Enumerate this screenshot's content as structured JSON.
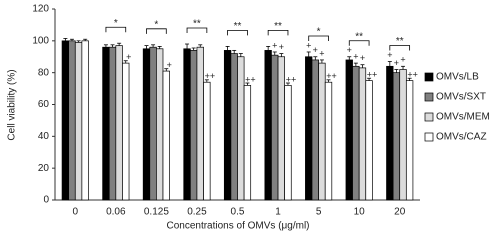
{
  "chart_data": {
    "type": "bar",
    "y_label": "Cell viability (%)",
    "x_label": "Concentrations of OMVs (μg/ml)",
    "categories": [
      "0",
      "0.06",
      "0.125",
      "0.25",
      "0.5",
      "1",
      "5",
      "10",
      "20"
    ],
    "ylim": [
      0,
      120
    ],
    "yticks": [
      0,
      20,
      40,
      60,
      80,
      100,
      120
    ],
    "legend": "right",
    "series": [
      {
        "name": "OMVs/LB",
        "color": "#000000",
        "values": [
          100,
          96,
          95,
          95,
          94,
          94,
          90,
          88,
          84
        ],
        "errors": [
          1.5,
          1.5,
          2,
          3,
          2.5,
          2.5,
          3,
          2,
          3
        ],
        "markers": [
          null,
          null,
          null,
          null,
          null,
          null,
          "+",
          "+",
          "+"
        ]
      },
      {
        "name": "OMVs/SXT",
        "color": "#808080",
        "values": [
          100,
          96,
          96,
          94,
          92,
          91,
          88,
          84,
          80
        ],
        "errors": [
          1,
          1.5,
          1.5,
          1.5,
          2,
          2,
          2,
          2,
          2
        ],
        "markers": [
          null,
          null,
          null,
          null,
          null,
          "+",
          "+",
          "+",
          "+"
        ]
      },
      {
        "name": "OMVs/MEM",
        "color": "#dcdcdc",
        "values": [
          99,
          97,
          95,
          96,
          90,
          90,
          86,
          83,
          82
        ],
        "errors": [
          1,
          1.5,
          1.5,
          1.5,
          2,
          2,
          2,
          2,
          2
        ],
        "markers": [
          null,
          null,
          null,
          null,
          null,
          "+",
          "+",
          "+",
          "+"
        ]
      },
      {
        "name": "OMVs/CAZ",
        "color": "#ffffff",
        "values": [
          100,
          86,
          81,
          74,
          72,
          72,
          74,
          75,
          75
        ],
        "errors": [
          1,
          1.5,
          1.5,
          1.5,
          1.5,
          1.5,
          1.5,
          1.5,
          1.5
        ],
        "markers": [
          null,
          "+",
          "+",
          "++",
          "++",
          "++",
          "++",
          "++",
          "++"
        ]
      }
    ],
    "significance": [
      null,
      "*",
      "*",
      "**",
      "**",
      "**",
      "*",
      "**",
      "**"
    ]
  }
}
